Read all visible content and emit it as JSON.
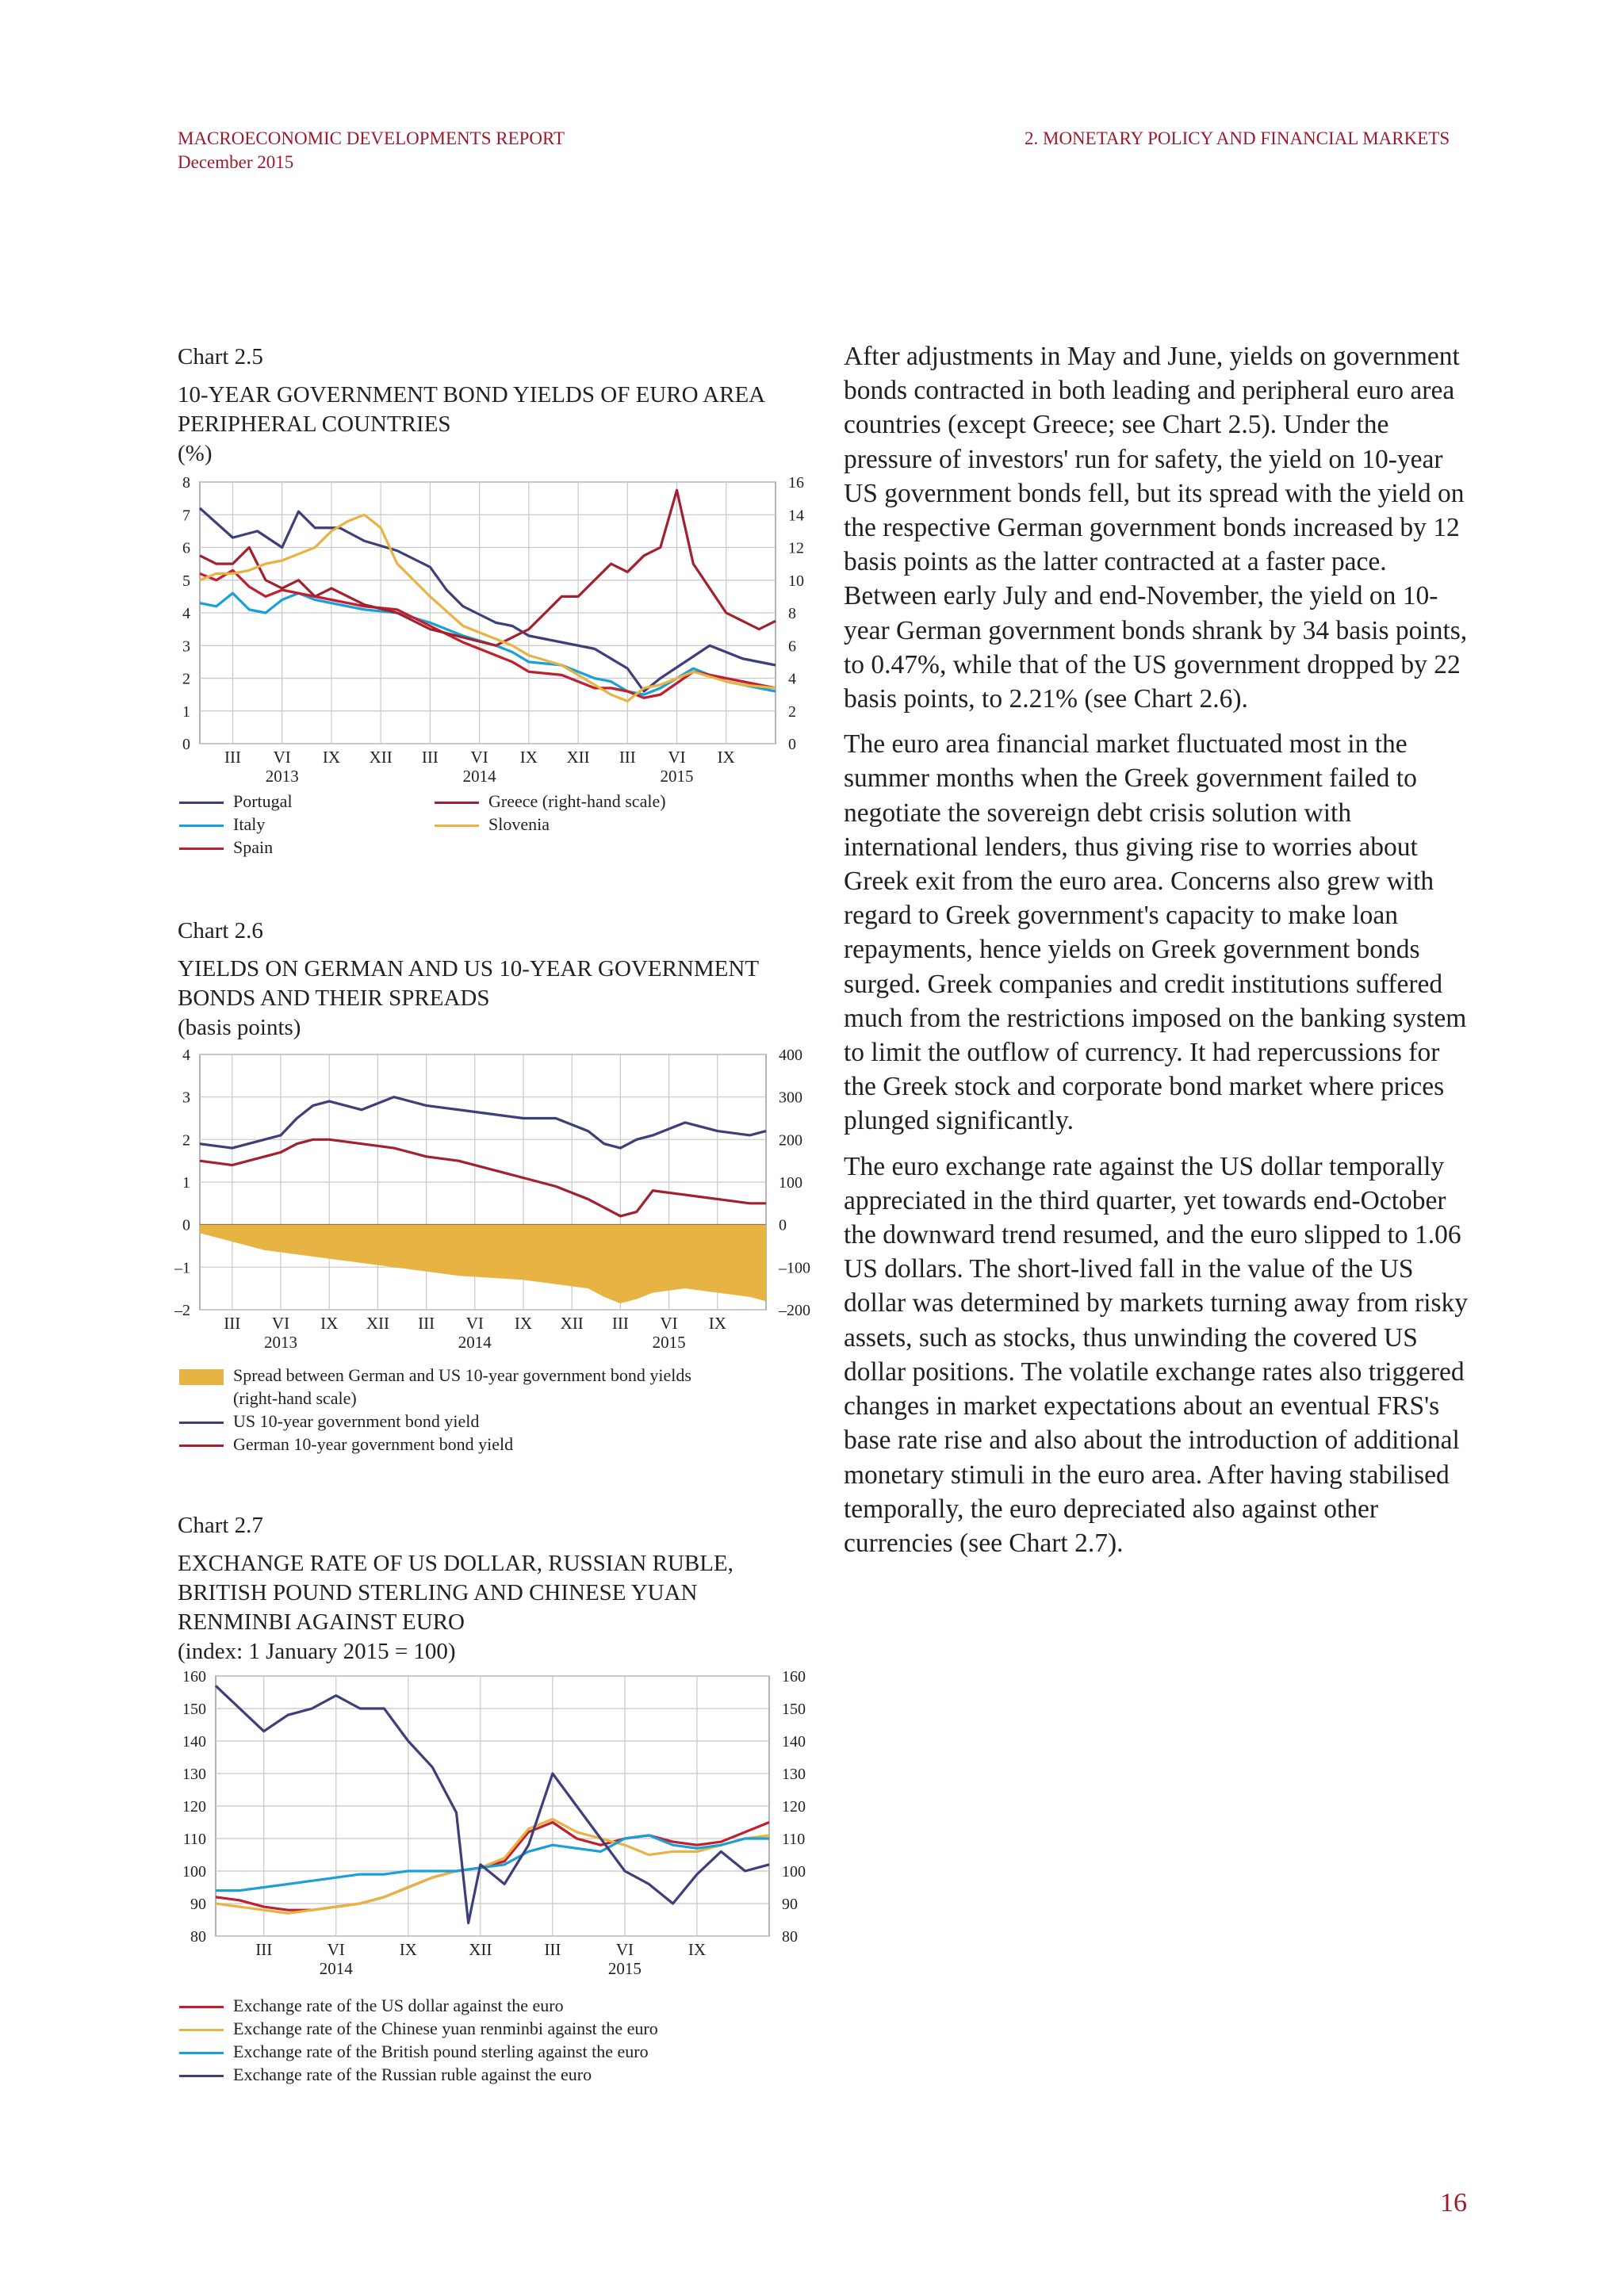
{
  "header": {
    "report": "MACROECONOMIC DEVELOPMENTS REPORT",
    "date": "December 2015",
    "section": "2. MONETARY POLICY AND FINANCIAL MARKETS"
  },
  "page_number": "16",
  "colors": {
    "accent": "#9b1b2c",
    "navy": "#3d3f7a",
    "red": "#c11f2f",
    "darkred": "#a3202e",
    "cyan": "#1aa0d8",
    "gold": "#e7b444",
    "grid": "#c8c8c8"
  },
  "body_paragraphs": [
    "After adjustments in May and June, yields on government bonds contracted in both leading and peripheral euro area countries (except Greece; see Chart 2.5). Under the pressure of investors' run for safety, the yield on 10-year US government bonds fell, but its spread with the yield on the respective German government bonds increased by 12 basis points as the latter contracted at a faster pace. Between early July and end-November, the yield on 10-year German government bonds shrank by 34 basis points, to 0.47%, while that of the US government dropped by 22 basis points, to 2.21% (see Chart 2.6).",
    "The euro area financial market fluctuated most in the summer months when the Greek government failed to negotiate the sovereign debt crisis solution with international lenders, thus giving rise to worries about Greek exit from the euro area. Concerns also grew with regard to Greek government's capacity to make loan repayments, hence yields on Greek government bonds surged. Greek companies and credit institutions suffered much from the restrictions imposed on the banking system to limit the outflow of currency. It had repercussions for the Greek stock and corporate bond market where prices plunged significantly.",
    "The euro exchange rate against the US dollar temporally appreciated in the third quarter, yet towards end-October the downward trend resumed, and the euro slipped to 1.06 US dollars. The short-lived fall in the value of the US dollar was determined by markets turning away from risky assets, such as stocks, thus unwinding the covered US dollar positions. The volatile exchange rates also triggered changes in market expectations about an eventual FRS's base rate rise and also about the introduction of additional monetary stimuli in the euro area. After having stabilised temporally, the euro depreciated also against other currencies (see Chart 2.7)."
  ],
  "chart_data": [
    {
      "type": "line",
      "number": "Chart 2.5",
      "title": "10-YEAR GOVERNMENT BOND YIELDS OF EURO AREA PERIPHERAL COUNTRIES",
      "unit": "(%)",
      "x_tick_labels": [
        "III",
        "VI",
        "IX",
        "XII",
        "III",
        "VI",
        "IX",
        "XII",
        "III",
        "VI",
        "IX"
      ],
      "x_year_labels": [
        "2013",
        "2014",
        "2015"
      ],
      "x_range": [
        "2013-01",
        "2015-11"
      ],
      "y_left_ticks": [
        "0",
        "1",
        "2",
        "3",
        "4",
        "5",
        "6",
        "7",
        "8"
      ],
      "y_right_ticks": [
        "0",
        "2",
        "4",
        "6",
        "8",
        "10",
        "12",
        "14",
        "16"
      ],
      "ylim_left": [
        0,
        8
      ],
      "ylim_right": [
        0,
        16
      ],
      "grid": true,
      "series": [
        {
          "name": "Portugal",
          "color": "#3d3f7a",
          "axis": "left",
          "x": [
            0,
            2,
            3.5,
            5,
            6,
            7,
            8.5,
            10,
            12,
            14,
            15,
            16,
            18,
            19,
            20,
            22,
            24,
            25,
            26,
            27,
            28,
            29.5,
            31,
            33,
            35
          ],
          "y": [
            7.2,
            6.3,
            6.5,
            6.0,
            7.1,
            6.6,
            6.6,
            6.2,
            5.9,
            5.4,
            4.7,
            4.2,
            3.7,
            3.6,
            3.3,
            3.1,
            2.9,
            2.6,
            2.3,
            1.6,
            2.0,
            2.5,
            3.0,
            2.6,
            2.4
          ]
        },
        {
          "name": "Italy",
          "color": "#1aa0d8",
          "axis": "left",
          "x": [
            0,
            1,
            2,
            3,
            4,
            5,
            6,
            7,
            8,
            10,
            12,
            14,
            16,
            18,
            19,
            20,
            22,
            24,
            25,
            26,
            27,
            28,
            30,
            32,
            33,
            35
          ],
          "y": [
            4.3,
            4.2,
            4.6,
            4.1,
            4.0,
            4.4,
            4.6,
            4.4,
            4.3,
            4.1,
            4.0,
            3.7,
            3.3,
            3.0,
            2.8,
            2.5,
            2.4,
            2.0,
            1.9,
            1.6,
            1.5,
            1.7,
            2.3,
            1.9,
            1.8,
            1.6
          ]
        },
        {
          "name": "Spain",
          "color": "#c11f2f",
          "axis": "left",
          "x": [
            0,
            1,
            2,
            3,
            4,
            5,
            6,
            7,
            8,
            10,
            12,
            14,
            16,
            18,
            19,
            20,
            22,
            24,
            25,
            26,
            27,
            28,
            30,
            32,
            33,
            35
          ],
          "y": [
            5.2,
            5.0,
            5.3,
            4.8,
            4.5,
            4.7,
            4.6,
            4.5,
            4.4,
            4.2,
            4.1,
            3.6,
            3.1,
            2.7,
            2.5,
            2.2,
            2.1,
            1.7,
            1.7,
            1.6,
            1.4,
            1.5,
            2.2,
            2.0,
            1.9,
            1.7
          ]
        },
        {
          "name": "Greece (right-hand scale)",
          "color": "#a3202e",
          "axis": "right",
          "x": [
            0,
            1,
            2,
            3,
            4,
            5,
            6,
            7,
            8,
            10,
            12,
            14,
            16,
            18,
            19,
            20,
            21,
            22,
            23,
            24,
            25,
            26,
            27,
            28,
            29,
            30,
            31,
            32,
            33,
            34,
            35
          ],
          "y": [
            11.5,
            11.0,
            11.0,
            12.0,
            10.0,
            9.5,
            10.0,
            9.0,
            9.5,
            8.5,
            8.0,
            7.0,
            6.5,
            6.0,
            6.5,
            7.0,
            8.0,
            9.0,
            9.0,
            10.0,
            11.0,
            10.5,
            11.5,
            12.0,
            15.5,
            11.0,
            9.5,
            8.0,
            7.5,
            7.0,
            7.5
          ]
        },
        {
          "name": "Slovenia",
          "color": "#e7b444",
          "axis": "left",
          "x": [
            0,
            1,
            2,
            3,
            4,
            5,
            6,
            7,
            8,
            9,
            10,
            11,
            12,
            14,
            16,
            18,
            19,
            20,
            22,
            24,
            25,
            26,
            27,
            28,
            30,
            32,
            33,
            35
          ],
          "y": [
            5.0,
            5.2,
            5.2,
            5.3,
            5.5,
            5.6,
            5.8,
            6.0,
            6.5,
            6.8,
            7.0,
            6.6,
            5.5,
            4.5,
            3.6,
            3.2,
            3.0,
            2.7,
            2.4,
            1.8,
            1.5,
            1.3,
            1.7,
            1.8,
            2.2,
            1.9,
            1.8,
            1.7
          ]
        }
      ]
    },
    {
      "type": "line",
      "number": "Chart 2.6",
      "title": "YIELDS ON GERMAN AND US 10-YEAR GOVERNMENT BONDS AND THEIR SPREADS",
      "unit": "(basis points)",
      "x_tick_labels": [
        "III",
        "VI",
        "IX",
        "XII",
        "III",
        "VI",
        "IX",
        "XII",
        "III",
        "VI",
        "IX"
      ],
      "x_year_labels": [
        "2013",
        "2014",
        "2015"
      ],
      "x_range": [
        "2013-01",
        "2015-11"
      ],
      "y_left_ticks": [
        "–2",
        "–1",
        "0",
        "1",
        "2",
        "3",
        "4"
      ],
      "y_right_ticks": [
        "–200",
        "–100",
        "0",
        "100",
        "200",
        "300",
        "400"
      ],
      "ylim_left": [
        -2,
        4
      ],
      "ylim_right": [
        -200,
        400
      ],
      "grid": true,
      "series": [
        {
          "name": "Spread between German and US 10-year government bond yields (right-hand scale)",
          "color": "#e7b444",
          "axis": "right",
          "style": "area",
          "x": [
            0,
            2,
            4,
            6,
            8,
            10,
            12,
            14,
            16,
            18,
            20,
            22,
            24,
            25,
            26,
            27,
            28,
            30,
            32,
            34,
            35
          ],
          "y": [
            -20,
            -40,
            -60,
            -70,
            -80,
            -90,
            -100,
            -110,
            -120,
            -125,
            -130,
            -140,
            -150,
            -170,
            -185,
            -175,
            -160,
            -150,
            -160,
            -170,
            -180
          ]
        },
        {
          "name": "US 10-year government bond  yield",
          "color": "#3d3f7a",
          "axis": "left",
          "x": [
            0,
            2,
            4,
            5,
            6,
            7,
            8,
            10,
            12,
            14,
            16,
            18,
            20,
            22,
            24,
            25,
            26,
            27,
            28,
            30,
            32,
            34,
            35
          ],
          "y": [
            1.9,
            1.8,
            2.0,
            2.1,
            2.5,
            2.8,
            2.9,
            2.7,
            3.0,
            2.8,
            2.7,
            2.6,
            2.5,
            2.5,
            2.2,
            1.9,
            1.8,
            2.0,
            2.1,
            2.4,
            2.2,
            2.1,
            2.2
          ]
        },
        {
          "name": "German 10-year government bond yield",
          "color": "#a3202e",
          "axis": "left",
          "x": [
            0,
            2,
            4,
            5,
            6,
            7,
            8,
            10,
            12,
            14,
            16,
            18,
            20,
            22,
            24,
            25,
            26,
            27,
            28,
            30,
            32,
            34,
            35
          ],
          "y": [
            1.5,
            1.4,
            1.6,
            1.7,
            1.9,
            2.0,
            2.0,
            1.9,
            1.8,
            1.6,
            1.5,
            1.3,
            1.1,
            0.9,
            0.6,
            0.4,
            0.2,
            0.3,
            0.8,
            0.7,
            0.6,
            0.5,
            0.5
          ]
        }
      ]
    },
    {
      "type": "line",
      "number": "Chart 2.7",
      "title": "EXCHANGE RATE OF US DOLLAR, RUSSIAN RUBLE, BRITISH POUND STERLING AND CHINESE YUAN RENMINBI AGAINST EURO",
      "unit": "(index: 1 January 2015 = 100)",
      "x_tick_labels": [
        "III",
        "VI",
        "IX",
        "XII",
        "III",
        "VI",
        "IX"
      ],
      "x_year_labels": [
        "2014",
        "2015"
      ],
      "x_range": [
        "2014-01",
        "2015-11"
      ],
      "y_left_ticks": [
        "80",
        "90",
        "100",
        "110",
        "120",
        "130",
        "140",
        "150",
        "160"
      ],
      "y_right_ticks": [
        "80",
        "90",
        "100",
        "110",
        "120",
        "130",
        "140",
        "150",
        "160"
      ],
      "ylim_left": [
        80,
        160
      ],
      "ylim_right": [
        80,
        160
      ],
      "grid": true,
      "series": [
        {
          "name": "Exchange rate of the US dollar against the euro",
          "color": "#c11f2f",
          "axis": "left",
          "x": [
            0,
            1,
            2,
            3,
            4,
            5,
            6,
            7,
            8,
            9,
            10,
            11,
            12,
            13,
            14,
            15,
            16,
            17,
            18,
            19,
            20,
            21,
            22,
            23
          ],
          "y": [
            92,
            91,
            89,
            88,
            88,
            89,
            90,
            92,
            95,
            98,
            100,
            101,
            103,
            112,
            115,
            110,
            108,
            110,
            111,
            109,
            108,
            109,
            112,
            115
          ]
        },
        {
          "name": "Exchange rate of the Chinese yuan renminbi against the euro",
          "color": "#e7b444",
          "axis": "left",
          "x": [
            0,
            1,
            2,
            3,
            4,
            5,
            6,
            7,
            8,
            9,
            10,
            11,
            12,
            13,
            14,
            15,
            16,
            17,
            18,
            19,
            20,
            21,
            22,
            23
          ],
          "y": [
            90,
            89,
            88,
            87,
            88,
            89,
            90,
            92,
            95,
            98,
            100,
            101,
            104,
            113,
            116,
            112,
            110,
            108,
            105,
            106,
            106,
            108,
            110,
            111
          ]
        },
        {
          "name": "Exchange rate of the British pound sterling against the euro",
          "color": "#1aa0d8",
          "axis": "left",
          "x": [
            0,
            1,
            2,
            3,
            4,
            5,
            6,
            7,
            8,
            9,
            10,
            11,
            12,
            13,
            14,
            15,
            16,
            17,
            18,
            19,
            20,
            21,
            22,
            23
          ],
          "y": [
            94,
            94,
            95,
            96,
            97,
            98,
            99,
            99,
            100,
            100,
            100,
            101,
            102,
            106,
            108,
            107,
            106,
            110,
            111,
            108,
            107,
            108,
            110,
            110
          ]
        },
        {
          "name": "Exchange rate of the Russian ruble against the euro",
          "color": "#3d3f7a",
          "axis": "left",
          "x": [
            0,
            1,
            2,
            3,
            4,
            5,
            6,
            7,
            8,
            9,
            10,
            10.5,
            11,
            12,
            13,
            14,
            15,
            16,
            17,
            18,
            19,
            20,
            21,
            22,
            23
          ],
          "y": [
            157,
            150,
            143,
            148,
            150,
            154,
            150,
            150,
            140,
            132,
            118,
            84,
            102,
            96,
            108,
            130,
            120,
            110,
            100,
            96,
            90,
            99,
            106,
            100,
            102
          ]
        }
      ]
    }
  ]
}
